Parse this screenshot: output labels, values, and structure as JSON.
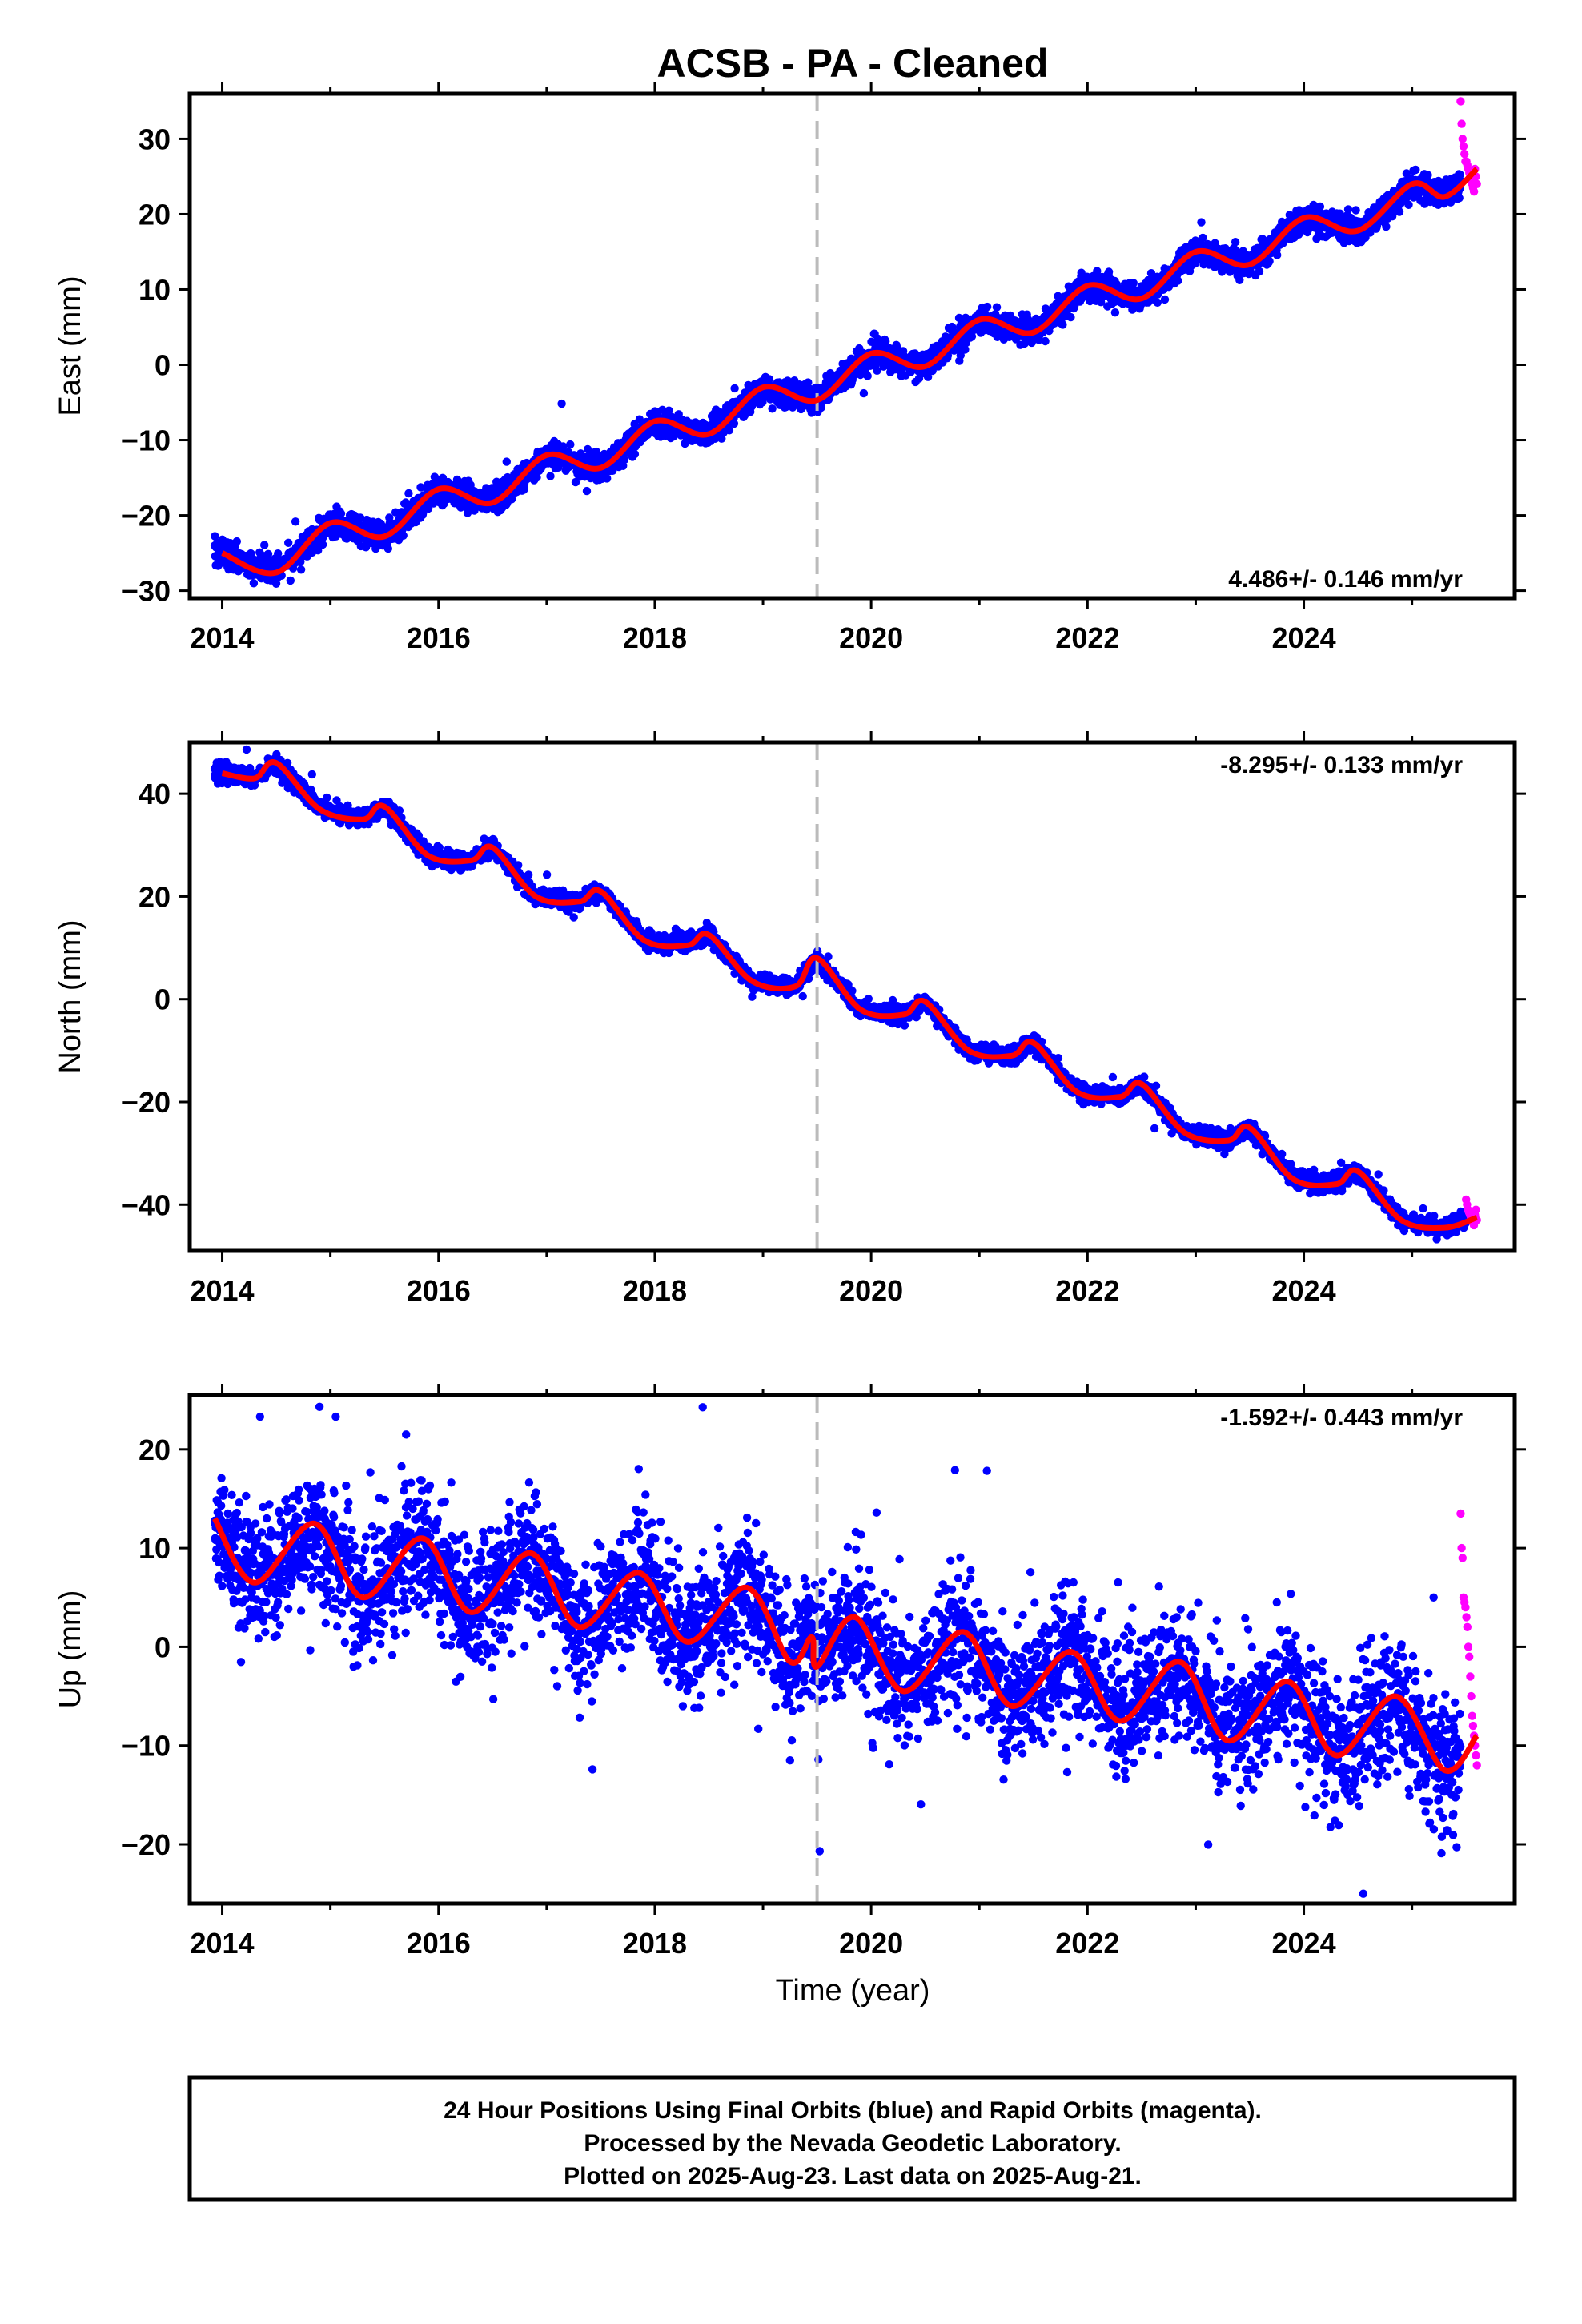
{
  "title": "ACSB  - PA - Cleaned",
  "xlabel": "Time (year)",
  "footer": {
    "line1": "24 Hour Positions Using Final Orbits (blue) and Rapid Orbits (magenta).",
    "line2": "Processed by the Nevada Geodetic Laboratory.",
    "line3": "Plotted on 2025-Aug-23. Last data on 2025-Aug-21."
  },
  "colors": {
    "final": "#0000ff",
    "rapid": "#ff00ff",
    "model": "#ff0000",
    "break_line": "#bbbbbb"
  },
  "chart_data": [
    {
      "type": "scatter",
      "name": "east",
      "ylabel": "East (mm)",
      "rate": "4.486+/- 0.146 mm/yr",
      "xlim": [
        2013.7,
        2025.95
      ],
      "ylim": [
        -31,
        36
      ],
      "xticks": [
        2014,
        2016,
        2018,
        2020,
        2022,
        2024
      ],
      "yticks": [
        -30,
        -20,
        -10,
        0,
        10,
        20,
        30
      ],
      "break_year": 2019.5,
      "data_start": 2013.93,
      "data_end": 2025.6,
      "rapid_start": 2025.45,
      "trend": {
        "intercept_2014": -25.5,
        "rate": 4.486
      },
      "seasonal": {
        "amp": 2.2,
        "peak_phase": 0.0,
        "offset": 0.0
      },
      "scatter_sd": 0.9,
      "rapid_values": [
        35,
        32,
        30,
        29,
        28,
        27,
        27,
        26.5,
        26,
        25.5,
        25,
        24.5,
        24,
        23.5,
        23,
        26,
        25,
        24
      ],
      "model_points": [
        [
          2014.0,
          -25.0
        ],
        [
          2014.5,
          -27.6
        ],
        [
          2015.0,
          -21.0
        ],
        [
          2015.5,
          -22.8
        ],
        [
          2016.0,
          -16.5
        ],
        [
          2016.5,
          -18.3
        ],
        [
          2017.0,
          -12.0
        ],
        [
          2017.5,
          -13.7
        ],
        [
          2018.0,
          -7.5
        ],
        [
          2018.5,
          -9.2
        ],
        [
          2019.0,
          -3.0
        ],
        [
          2019.5,
          -4.7
        ],
        [
          2020.0,
          1.5
        ],
        [
          2020.5,
          -0.2
        ],
        [
          2021.0,
          6.0
        ],
        [
          2021.5,
          4.3
        ],
        [
          2022.0,
          10.5
        ],
        [
          2022.5,
          8.8
        ],
        [
          2023.0,
          15.0
        ],
        [
          2023.5,
          13.3
        ],
        [
          2024.0,
          19.5
        ],
        [
          2024.5,
          17.8
        ],
        [
          2025.0,
          24.0
        ],
        [
          2025.3,
          22.3
        ],
        [
          2025.6,
          26.0
        ]
      ]
    },
    {
      "type": "scatter",
      "name": "north",
      "ylabel": "North (mm)",
      "rate": "-8.295+/- 0.133 mm/yr",
      "xlim": [
        2013.7,
        2025.95
      ],
      "ylim": [
        -49,
        50
      ],
      "xticks": [
        2014,
        2016,
        2018,
        2020,
        2022,
        2024
      ],
      "yticks": [
        -40,
        -20,
        0,
        20,
        40
      ],
      "break_year": 2019.5,
      "data_start": 2013.93,
      "data_end": 2025.6,
      "rapid_start": 2025.5,
      "trend": {
        "intercept_2014": 44.0,
        "rate": -8.295
      },
      "seasonal": {
        "amp": 2.5,
        "peak_phase": 0.5,
        "offset": 0.0
      },
      "scatter_sd": 0.8,
      "rapid_values": [
        -39,
        -40,
        -41,
        -41.5,
        -42,
        -42.5,
        -43,
        -43.5,
        -44,
        -42,
        -41,
        -43
      ],
      "model_points": [
        [
          2014.0,
          44.0
        ],
        [
          2014.3,
          43.0
        ],
        [
          2014.5,
          46.0
        ],
        [
          2014.9,
          37.0
        ],
        [
          2015.3,
          35.0
        ],
        [
          2015.5,
          37.5
        ],
        [
          2015.9,
          28.0
        ],
        [
          2016.3,
          27.0
        ],
        [
          2016.5,
          29.5
        ],
        [
          2016.9,
          20.0
        ],
        [
          2017.3,
          19.0
        ],
        [
          2017.5,
          21.0
        ],
        [
          2017.9,
          11.5
        ],
        [
          2018.3,
          10.5
        ],
        [
          2018.5,
          12.5
        ],
        [
          2018.9,
          3.5
        ],
        [
          2019.3,
          2.5
        ],
        [
          2019.5,
          8.0
        ],
        [
          2019.9,
          -2.0
        ],
        [
          2020.3,
          -3.0
        ],
        [
          2020.5,
          -0.5
        ],
        [
          2020.9,
          -10.0
        ],
        [
          2021.3,
          -11.0
        ],
        [
          2021.5,
          -8.5
        ],
        [
          2021.9,
          -18.0
        ],
        [
          2022.3,
          -19.0
        ],
        [
          2022.5,
          -16.5
        ],
        [
          2022.9,
          -26.0
        ],
        [
          2023.3,
          -27.5
        ],
        [
          2023.5,
          -25.0
        ],
        [
          2023.9,
          -35.0
        ],
        [
          2024.3,
          -36.0
        ],
        [
          2024.5,
          -33.5
        ],
        [
          2024.9,
          -43.0
        ],
        [
          2025.3,
          -44.5
        ],
        [
          2025.6,
          -42.5
        ]
      ]
    },
    {
      "type": "scatter",
      "name": "up",
      "ylabel": "Up (mm)",
      "rate": "-1.592+/- 0.443 mm/yr",
      "xlim": [
        2013.7,
        2025.95
      ],
      "ylim": [
        -26,
        25.5
      ],
      "xticks": [
        2014,
        2016,
        2018,
        2020,
        2022,
        2024
      ],
      "yticks": [
        -20,
        -10,
        0,
        10,
        20
      ],
      "break_year": 2019.5,
      "data_start": 2013.93,
      "data_end": 2025.6,
      "rapid_start": 2025.45,
      "trend": {
        "intercept_2014": 9.5,
        "rate": -1.592
      },
      "seasonal": {
        "amp": 3.2,
        "peak_phase": 0.85,
        "offset": 0.0
      },
      "scatter_sd": 3.2,
      "rapid_values": [
        13.5,
        10,
        9,
        5,
        4.5,
        4,
        3,
        2,
        0,
        -1,
        -3,
        -5,
        -7,
        -8,
        -9,
        -10,
        -11,
        -12
      ],
      "outliers": [
        [
          2014.35,
          23.3
        ],
        [
          2014.9,
          24.3
        ],
        [
          2015.05,
          23.3
        ],
        [
          2015.7,
          21.5
        ],
        [
          2020.05,
          13.6
        ],
        [
          2024.55,
          -25.0
        ],
        [
          2023.75,
          4.5
        ],
        [
          2025.2,
          5.0
        ],
        [
          2019.25,
          -11.5
        ]
      ],
      "model_points": [
        [
          2013.93,
          13.0
        ],
        [
          2014.3,
          6.5
        ],
        [
          2014.85,
          12.5
        ],
        [
          2015.3,
          5.0
        ],
        [
          2015.85,
          11.0
        ],
        [
          2016.3,
          3.5
        ],
        [
          2016.85,
          9.5
        ],
        [
          2017.3,
          2.0
        ],
        [
          2017.85,
          7.5
        ],
        [
          2018.3,
          0.5
        ],
        [
          2018.85,
          6.0
        ],
        [
          2019.25,
          -1.5
        ],
        [
          2019.45,
          1.0
        ],
        [
          2019.5,
          -2.0
        ],
        [
          2019.85,
          3.0
        ],
        [
          2020.3,
          -4.5
        ],
        [
          2020.85,
          1.5
        ],
        [
          2021.3,
          -6.0
        ],
        [
          2021.85,
          -0.5
        ],
        [
          2022.3,
          -7.5
        ],
        [
          2022.85,
          -1.5
        ],
        [
          2023.3,
          -9.5
        ],
        [
          2023.85,
          -3.5
        ],
        [
          2024.3,
          -11.0
        ],
        [
          2024.85,
          -5.0
        ],
        [
          2025.3,
          -12.5
        ],
        [
          2025.6,
          -9.0
        ]
      ]
    }
  ]
}
